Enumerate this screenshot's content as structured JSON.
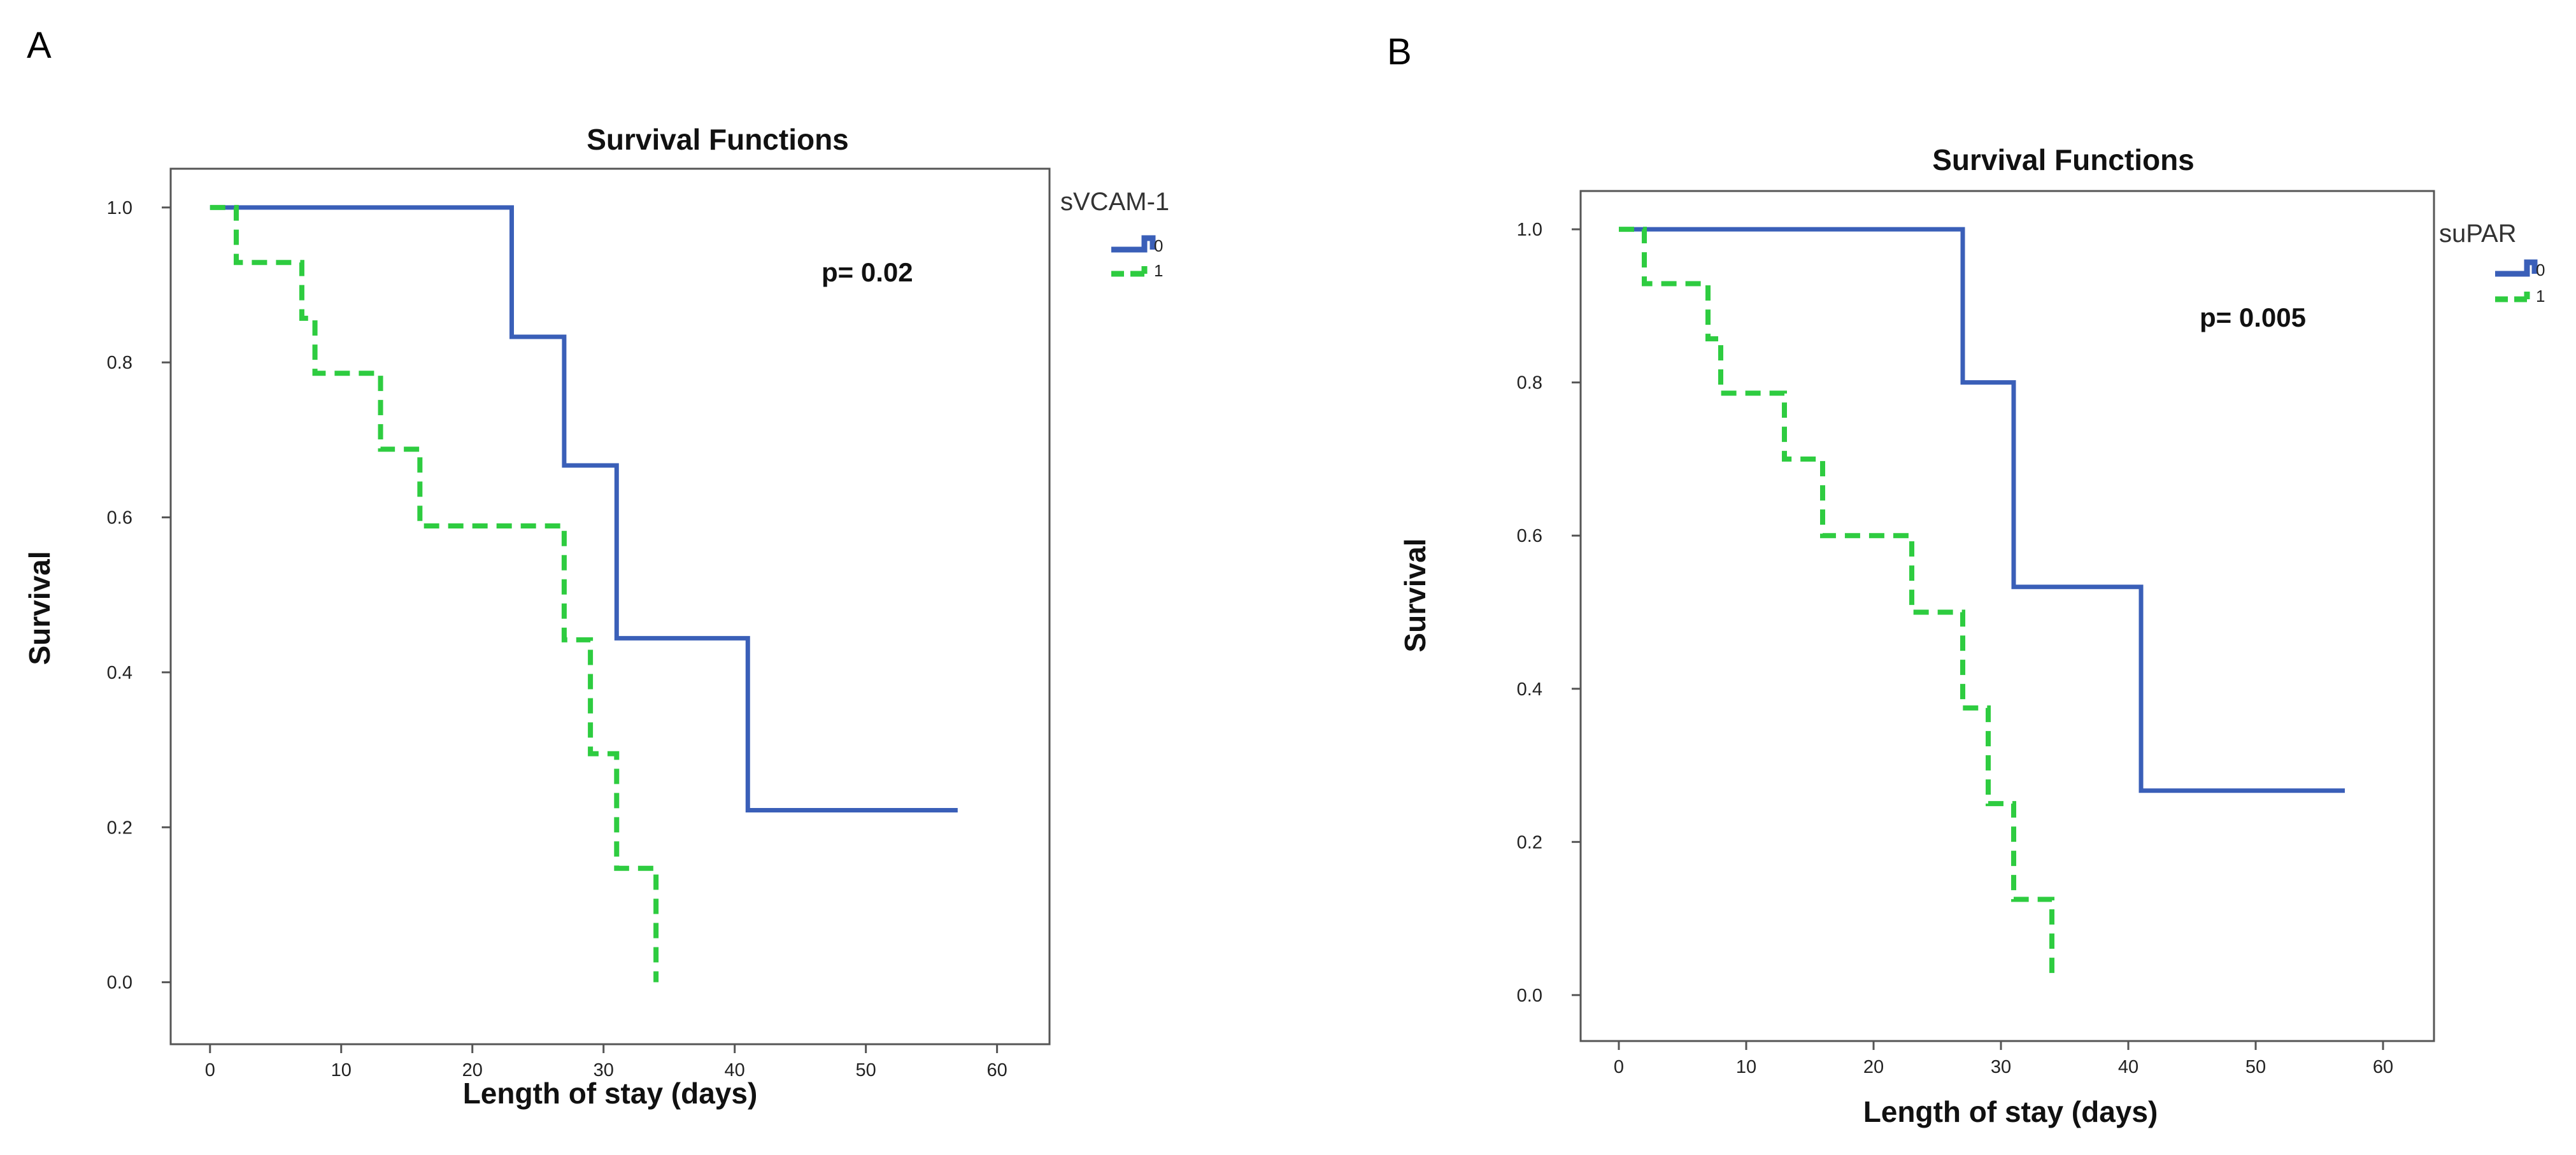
{
  "panels": {
    "a": {
      "letter": "A"
    },
    "b": {
      "letter": "B"
    }
  },
  "colors": {
    "group0": "#3a5fb8",
    "group1": "#2ecc40",
    "frame": "#555555"
  },
  "chart_data": [
    {
      "type": "line",
      "panel": "A",
      "title": "Survival Functions",
      "xlabel": "Length of stay (days)",
      "ylabel": "Survival",
      "xlim": [
        -3,
        64
      ],
      "ylim": [
        -0.08,
        1.05
      ],
      "xticks": [
        0,
        10,
        20,
        30,
        40,
        50,
        60
      ],
      "yticks": [
        0.0,
        0.2,
        0.4,
        0.6,
        0.8,
        1.0
      ],
      "xtick_labels": [
        "0",
        "10",
        "20",
        "30",
        "40",
        "50",
        "60"
      ],
      "ytick_labels": [
        "0.0",
        "0.2",
        "0.4",
        "0.6",
        "0.8",
        "1.0"
      ],
      "legend_title": "sVCAM-1",
      "annotation": "p= 0.02",
      "series": [
        {
          "name": "0",
          "style": "solid",
          "times": [
            0,
            23,
            27,
            31,
            41,
            57
          ],
          "survival": [
            1.0,
            0.833,
            0.667,
            0.444,
            0.222,
            0.222
          ]
        },
        {
          "name": "1",
          "style": "dashed",
          "times": [
            0,
            2,
            7,
            8,
            13,
            16,
            27,
            29,
            31,
            34,
            34
          ],
          "survival": [
            1.0,
            0.929,
            0.857,
            0.786,
            0.688,
            0.589,
            0.442,
            0.295,
            0.147,
            0.147,
            0.0
          ]
        }
      ]
    },
    {
      "type": "line",
      "panel": "B",
      "title": "Survival Functions",
      "xlabel": "Length of stay (days)",
      "ylabel": "Survival",
      "xlim": [
        -3,
        64
      ],
      "ylim": [
        -0.06,
        1.05
      ],
      "xticks": [
        0,
        10,
        20,
        30,
        40,
        50,
        60
      ],
      "yticks": [
        0.0,
        0.2,
        0.4,
        0.6,
        0.8,
        1.0
      ],
      "xtick_labels": [
        "0",
        "10",
        "20",
        "30",
        "40",
        "50",
        "60"
      ],
      "ytick_labels": [
        "0.0",
        "0.2",
        "0.4",
        "0.6",
        "0.8",
        "1.0"
      ],
      "legend_title": "suPAR",
      "annotation": "p= 0.005",
      "series": [
        {
          "name": "0",
          "style": "solid",
          "times": [
            0,
            27,
            31,
            41,
            57
          ],
          "survival": [
            1.0,
            0.8,
            0.533,
            0.267,
            0.267
          ]
        },
        {
          "name": "1",
          "style": "dashed",
          "times": [
            0,
            2,
            7,
            8,
            13,
            15,
            16,
            23,
            27,
            28,
            29,
            31,
            34,
            34
          ],
          "survival": [
            1.0,
            0.929,
            0.857,
            0.786,
            0.7,
            0.7,
            0.6,
            0.5,
            0.375,
            0.375,
            0.25,
            0.125,
            0.125,
            0.02
          ]
        }
      ]
    }
  ]
}
